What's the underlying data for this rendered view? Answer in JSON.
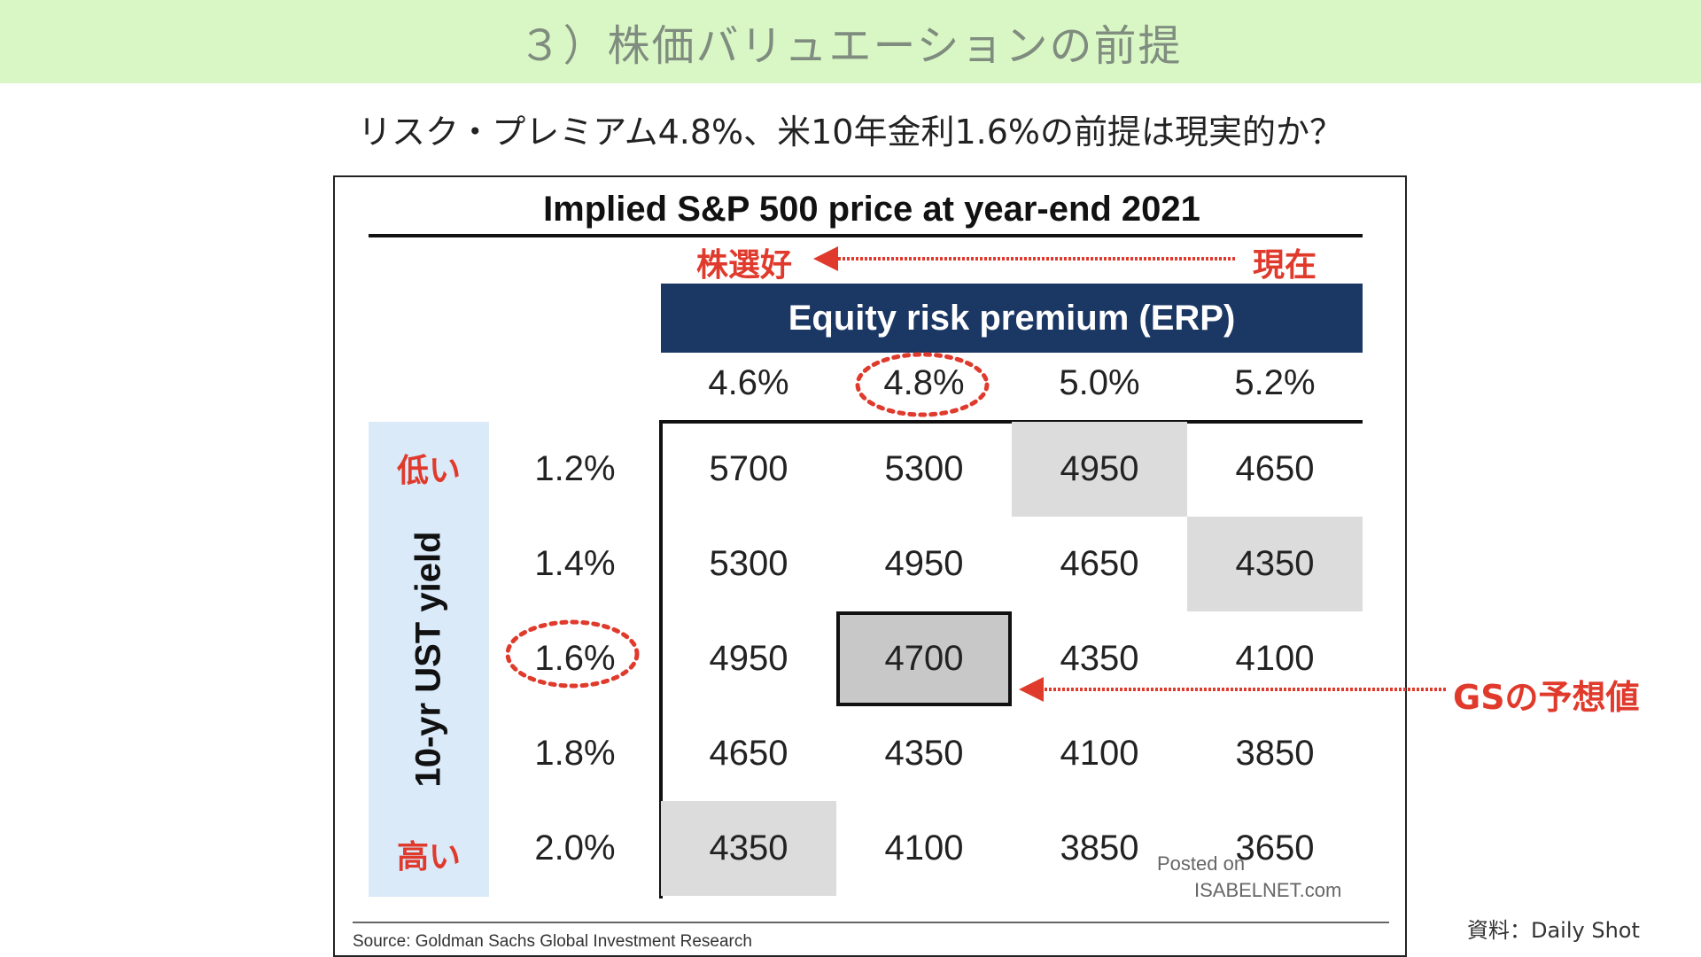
{
  "slide": {
    "title": "３）株価バリュエーションの前提",
    "subtitle": "リスク・プレミアム4.8%、米10年金利1.6%の前提は現実的か？",
    "credit": "資料：Daily Shot",
    "gs_annotation": "GSの予想値",
    "colors": {
      "title_bar": "#d9f7c4",
      "annotation_red": "#e03a2c",
      "header_navy": "#1b3763",
      "side_band": "#daeaf9"
    }
  },
  "table": {
    "title": "Implied S&P 500 price at year-end 2021",
    "header": "Equity risk premium (ERP)",
    "arrow_left_label": "株選好",
    "arrow_right_label": "現在",
    "row_axis_label": "10-yr UST yield",
    "low_label": "低い",
    "high_label": "高い",
    "erp_columns": [
      "4.6%",
      "4.8%",
      "5.0%",
      "5.2%"
    ],
    "rows": [
      {
        "yield": "1.2%",
        "values": [
          "5700",
          "5300",
          "4950",
          "4650"
        ]
      },
      {
        "yield": "1.4%",
        "values": [
          "5300",
          "4950",
          "4650",
          "4350"
        ]
      },
      {
        "yield": "1.6%",
        "values": [
          "4950",
          "4700",
          "4350",
          "4100"
        ]
      },
      {
        "yield": "1.8%",
        "values": [
          "4650",
          "4350",
          "4100",
          "3850"
        ]
      },
      {
        "yield": "2.0%",
        "values": [
          "4350",
          "4100",
          "3850",
          "3650"
        ]
      }
    ],
    "watermark_line1": "Posted on",
    "watermark_line2": "ISABELNET.com",
    "source": "Source: Goldman Sachs Global Investment Research"
  }
}
